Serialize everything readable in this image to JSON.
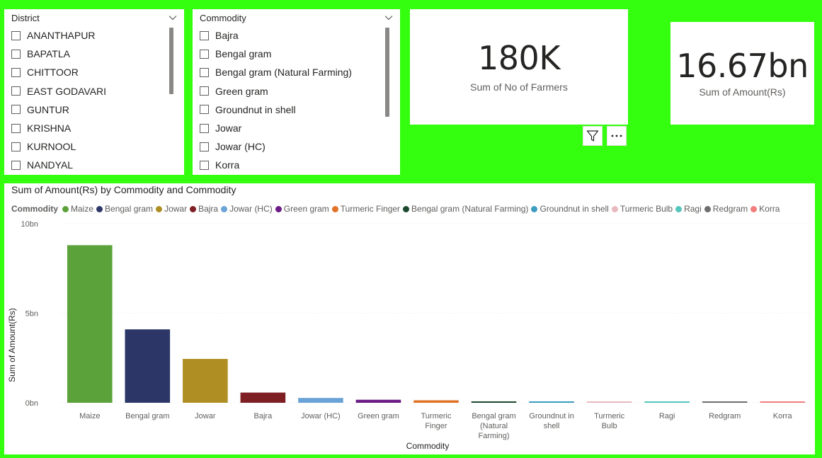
{
  "district_slicer": {
    "title": "District",
    "items": [
      "ANANTHAPUR",
      "BAPATLA",
      "CHITTOOR",
      "EAST GODAVARI",
      "GUNTUR",
      "KRISHNA",
      "KURNOOL",
      "NANDYAL"
    ]
  },
  "commodity_slicer": {
    "title": "Commodity",
    "items": [
      "Bajra",
      "Bengal gram",
      "Bengal gram (Natural Farming)",
      "Green gram",
      "Groundnut in shell",
      "Jowar",
      "Jowar (HC)",
      "Korra"
    ]
  },
  "kpi_farmers": {
    "value": "180K",
    "label": "Sum of No of Farmers"
  },
  "kpi_amount": {
    "value": "16.67bn",
    "label": "Sum of Amount(Rs)"
  },
  "icons": {
    "filter": "filter-icon",
    "more": "more-options-icon"
  },
  "colors": {
    "background": "#33FF0F",
    "card": "#FFFFFF"
  },
  "chart_data": {
    "type": "bar",
    "title": "Sum of Amount(Rs) by Commodity and Commodity",
    "legend_title": "Commodity",
    "legend_position": "top-left",
    "xlabel": "Commodity",
    "ylabel": "Sum of Amount(Rs)",
    "ylim": [
      0,
      10
    ],
    "y_unit": "bn",
    "yticks": [
      0,
      5,
      10
    ],
    "ytick_labels": [
      "0bn",
      "5bn",
      "10bn"
    ],
    "grid": true,
    "categories": [
      "Maize",
      "Bengal gram",
      "Jowar",
      "Bajra",
      "Jowar (HC)",
      "Green gram",
      "Turmeric Finger",
      "Bengal gram (Natural Farming)",
      "Groundnut in shell",
      "Turmeric Bulb",
      "Ragi",
      "Redgram",
      "Korra"
    ],
    "values": [
      8.8,
      4.1,
      2.45,
      0.57,
      0.27,
      0.17,
      0.14,
      0.08,
      0.07,
      0.05,
      0.03,
      0.02,
      0.01
    ],
    "colors": [
      "#5CA23A",
      "#2C3768",
      "#AF8F24",
      "#7E1F24",
      "#6AA3D6",
      "#6A1B85",
      "#E07328",
      "#1D4A2F",
      "#3D9DC1",
      "#E8B9BF",
      "#55C6BD",
      "#6E6E6E",
      "#F27D7D"
    ]
  }
}
